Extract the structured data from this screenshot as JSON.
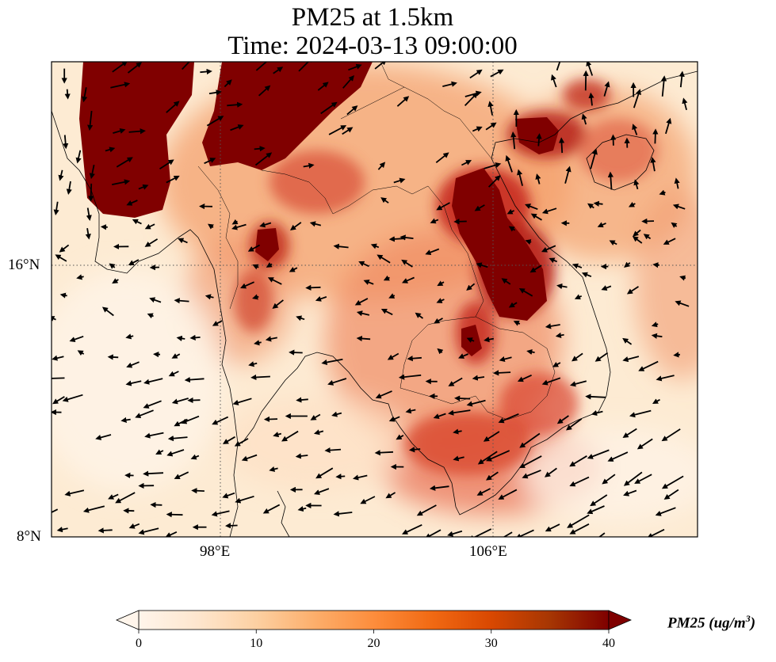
{
  "title": {
    "line1": "PM25 at 1.5km",
    "line2": "Time: 2024-03-13 09:00:00"
  },
  "axes": {
    "lon_extent": [
      93,
      112
    ],
    "lat_extent": [
      8,
      22
    ],
    "lon_ticks": [
      {
        "value": 98,
        "label": "98°E"
      },
      {
        "value": 106,
        "label": "106°E"
      }
    ],
    "lat_ticks": [
      {
        "value": 16,
        "label": "16°N"
      },
      {
        "value": 8,
        "label": "8°N"
      }
    ],
    "grid": true
  },
  "colorbar": {
    "min": 0,
    "max": 40,
    "extend": "both",
    "ticks": [
      {
        "value": 0,
        "label": "0"
      },
      {
        "value": 10,
        "label": "10"
      },
      {
        "value": 20,
        "label": "20"
      },
      {
        "value": 30,
        "label": "30"
      },
      {
        "value": 40,
        "label": "40"
      }
    ],
    "label_main": "PM25 (ug/m",
    "label_sup": "3",
    "label_end": ")",
    "colormap": [
      "#fff5eb",
      "#fee6ce",
      "#fdd0a2",
      "#fdae6b",
      "#fd8d3c",
      "#f16913",
      "#d94801",
      "#a63603",
      "#7f0000"
    ]
  }
}
